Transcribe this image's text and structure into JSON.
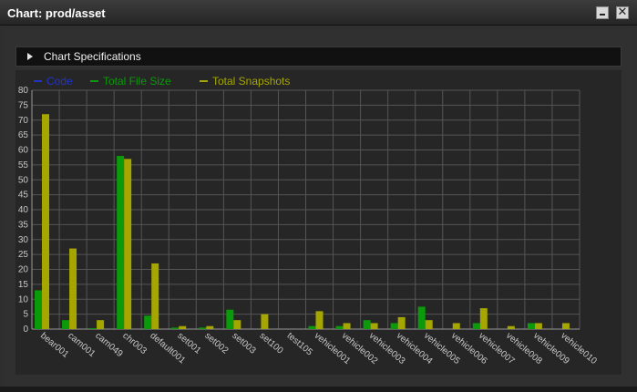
{
  "window": {
    "title": "Chart: prod/asset",
    "minimize_icon": "minimize-icon",
    "close_icon": "close-icon"
  },
  "specs": {
    "label": "Chart Specifications",
    "icon": "triangle-right-icon"
  },
  "colors": {
    "code": "#2233cc",
    "size": "#0a9a0a",
    "snap": "#a6a600",
    "grid": "#555555",
    "axis": "#9a9a9a"
  },
  "chart_data": {
    "type": "bar",
    "categories": [
      "bear001",
      "cam001",
      "cam049",
      "chr003",
      "default001",
      "set001",
      "set002",
      "set003",
      "set100",
      "test105",
      "vehicle001",
      "vehicle002",
      "vehicle003",
      "vehicle004",
      "vehicle005",
      "vehicle006",
      "vehicle007",
      "vehicle008",
      "vehicle009",
      "vehicle010"
    ],
    "series": [
      {
        "name": "Code",
        "values": [
          0,
          0,
          0,
          0,
          0,
          0,
          0,
          0,
          0,
          0,
          0,
          0,
          0,
          0,
          0,
          0,
          0,
          0,
          0,
          0
        ]
      },
      {
        "name": "Total File Size",
        "values": [
          13,
          3,
          0.3,
          58,
          4.5,
          0.5,
          0.5,
          6.5,
          0,
          0,
          1,
          1,
          3,
          2,
          7.5,
          0,
          2,
          0,
          2,
          0
        ]
      },
      {
        "name": "Total Snapshots",
        "values": [
          72,
          27,
          3,
          57,
          22,
          1,
          1,
          3,
          5,
          0,
          6,
          2,
          2,
          4,
          3,
          2,
          7,
          1,
          2,
          2
        ]
      }
    ],
    "ylim": [
      0,
      80
    ],
    "yticks": [
      0,
      5,
      10,
      15,
      20,
      25,
      30,
      35,
      40,
      45,
      50,
      55,
      60,
      65,
      70,
      75,
      80
    ],
    "grid": true,
    "legend_position": "top-left"
  }
}
